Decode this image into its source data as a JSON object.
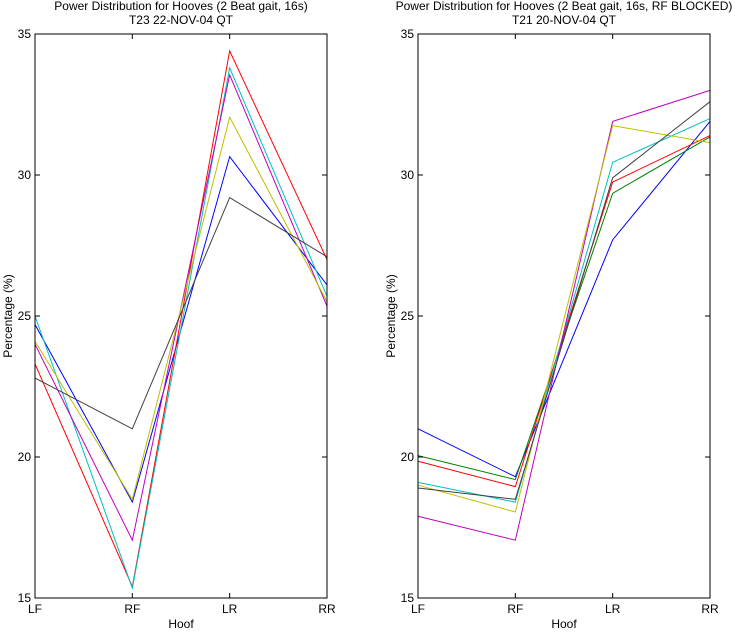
{
  "chart_data": [
    {
      "type": "line",
      "title": "Power Distribution for Hooves (2 Beat gait, 16s)",
      "subtitle": "T23 22-NOV-04 QT",
      "xlabel": "Hoof",
      "ylabel": "Percentage (%)",
      "categories": [
        "LF",
        "RF",
        "LR",
        "RR"
      ],
      "ylim": [
        15,
        35
      ],
      "yticks": [
        15,
        20,
        25,
        30,
        35
      ],
      "grid": false,
      "series": [
        {
          "color": "#0000ff",
          "values": [
            24.7,
            18.4,
            30.65,
            26.1
          ]
        },
        {
          "color": "#ff0000",
          "values": [
            23.3,
            15.4,
            34.4,
            27.0
          ]
        },
        {
          "color": "#00bfbf",
          "values": [
            25.0,
            15.35,
            33.8,
            25.7
          ]
        },
        {
          "color": "#bf00bf",
          "values": [
            24.0,
            17.05,
            33.55,
            25.35
          ]
        },
        {
          "color": "#bfbf00",
          "values": [
            24.1,
            18.5,
            32.05,
            25.5
          ]
        },
        {
          "color": "#404040",
          "values": [
            22.8,
            21.0,
            29.2,
            27.1
          ]
        }
      ]
    },
    {
      "type": "line",
      "title": "Power Distribution for Hooves (2 Beat gait, 16s, RF BLOCKED)",
      "subtitle": "T21 20-NOV-04 QT",
      "xlabel": "Hoof",
      "ylabel": "Percentage (%)",
      "categories": [
        "LF",
        "RF",
        "LR",
        "RR"
      ],
      "ylim": [
        15,
        35
      ],
      "yticks": [
        15,
        20,
        25,
        30,
        35
      ],
      "grid": false,
      "series": [
        {
          "color": "#0000ff",
          "values": [
            21.0,
            19.3,
            27.7,
            31.9
          ]
        },
        {
          "color": "#008000",
          "values": [
            20.05,
            19.2,
            29.35,
            31.35
          ]
        },
        {
          "color": "#ff0000",
          "values": [
            19.85,
            18.95,
            29.75,
            31.4
          ]
        },
        {
          "color": "#00bfbf",
          "values": [
            19.1,
            18.4,
            30.45,
            32.0
          ]
        },
        {
          "color": "#bf00bf",
          "values": [
            17.9,
            17.05,
            31.9,
            33.0
          ]
        },
        {
          "color": "#bfbf00",
          "values": [
            19.0,
            18.05,
            31.75,
            31.15
          ]
        },
        {
          "color": "#404040",
          "values": [
            18.9,
            18.5,
            29.9,
            32.6
          ]
        }
      ]
    }
  ]
}
